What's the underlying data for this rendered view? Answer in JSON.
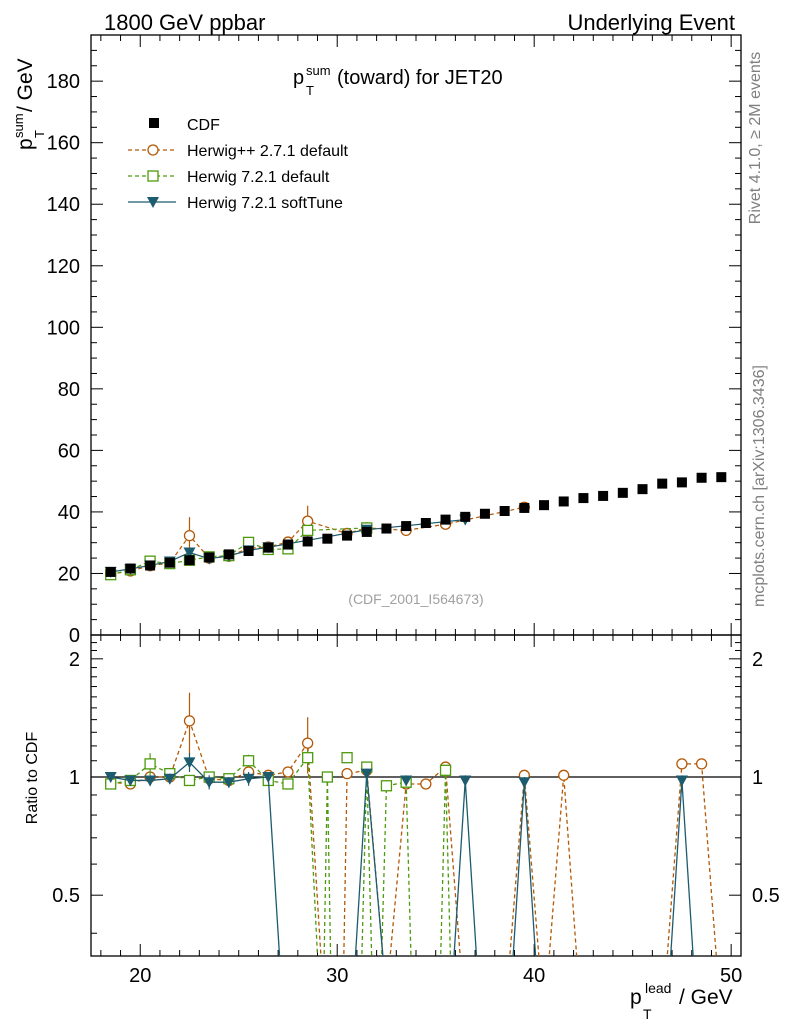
{
  "header": {
    "left": "1800 GeV ppbar",
    "right": "Underlying Event"
  },
  "side": {
    "rivet": "Rivet 4.1.0, ≥ 2M events",
    "mcplots": "mcplots.cern.ch [arXiv:1306.3436]"
  },
  "chart_data": {
    "type": "scatter",
    "title_main": "p",
    "title_sup": "sum",
    "title_sub": "T",
    "title_rest": " (toward) for JET20",
    "ylabel_main": "p",
    "ylabel_sup": "sum",
    "ylabel_sub": "T",
    "ylabel_rest": " / GeV",
    "xlabel_main": "p",
    "xlabel_sup": "lead",
    "xlabel_sub": "T",
    "xlabel_rest": " / GeV",
    "ratio_ylabel": "Ratio to CDF",
    "analysis_id": "(CDF_2001_I564673)",
    "xlim": [
      17.5,
      50.5
    ],
    "ylim": [
      0,
      195
    ],
    "ratio_ylim": [
      0.35,
      2.3
    ],
    "xticks": [
      20,
      30,
      40,
      50
    ],
    "yticks": [
      0,
      20,
      40,
      60,
      80,
      100,
      120,
      140,
      160,
      180
    ],
    "ratio_yticks": [
      0.5,
      1,
      2
    ],
    "legend": [
      {
        "label": "CDF",
        "marker": "square-filled",
        "color": "#000000"
      },
      {
        "label": "Herwig++ 2.7.1 default",
        "marker": "circle-open",
        "color": "#b35806"
      },
      {
        "label": "Herwig 7.2.1 default",
        "marker": "square-open",
        "color": "#4d9a0e"
      },
      {
        "label": "Herwig 7.2.1 softTune",
        "marker": "triangle-down",
        "color": "#1d5b6e"
      }
    ],
    "x": [
      18.5,
      19.5,
      20.5,
      21.5,
      22.5,
      23.5,
      24.5,
      25.5,
      26.5,
      27.5,
      28.5,
      29.5,
      30.5,
      31.5,
      32.5,
      33.5,
      34.5,
      35.5,
      36.5,
      37.5,
      38.5,
      39.5,
      40.5,
      41.5,
      42.5,
      43.5,
      44.5,
      45.5,
      46.5,
      47.5,
      48.5,
      49.5
    ],
    "data": {
      "name": "CDF",
      "values": [
        20.5,
        21.6,
        22.6,
        23.5,
        24.3,
        25.2,
        26.2,
        27.3,
        28.4,
        29.4,
        30.4,
        31.3,
        32.3,
        33.5,
        34.6,
        35.4,
        36.4,
        37.5,
        38.4,
        39.4,
        40.3,
        41.3,
        42.2,
        43.4,
        44.5,
        45.2,
        46.2,
        47.4,
        49.2,
        49.6,
        51.1,
        51.3
      ]
    },
    "series": [
      {
        "name": "Herwig++ 2.7.1 default",
        "values": [
          19.8,
          20.8,
          22.5,
          23.4,
          32.3,
          25.0,
          25.6,
          28.2,
          28.6,
          30.2,
          37.0,
          null,
          33.0,
          34.8,
          null,
          34.0,
          null,
          36.0,
          null,
          null,
          null,
          41.5,
          null,
          null,
          null,
          null,
          null,
          null,
          null,
          null,
          null,
          null
        ],
        "ratio": [
          0.97,
          0.96,
          1.0,
          1.0,
          1.39,
          0.99,
          0.98,
          1.03,
          1.01,
          1.03,
          1.22,
          null,
          1.02,
          1.04,
          null,
          0.96,
          0.96,
          1.06,
          null,
          null,
          null,
          1.01,
          null,
          1.01,
          null,
          null,
          null,
          null,
          null,
          1.08,
          1.08,
          null
        ],
        "errors": [
          0.5,
          0.5,
          0.6,
          0.6,
          6.0,
          0.8,
          0.8,
          0.8,
          0.8,
          1.0,
          5.0,
          null,
          1.0,
          1.0,
          null,
          1.0,
          null,
          1.0,
          null,
          null,
          null,
          1.0,
          null,
          null,
          null,
          null,
          null,
          null,
          null,
          null,
          null,
          null
        ],
        "ratio_errors": [
          0.03,
          0.03,
          0.03,
          0.03,
          0.25,
          0.03,
          0.03,
          0.03,
          0.03,
          0.03,
          0.2,
          null,
          0.03,
          0.03,
          null,
          0.03,
          0.03,
          0.03,
          null,
          null,
          null,
          0.03,
          null,
          0.03,
          null,
          null,
          null,
          null,
          null,
          0.03,
          0.03,
          null
        ],
        "ratio_segments": [
          [
            18.5,
            19.5,
            20.5,
            21.5,
            22.5,
            23.5,
            24.5,
            25.5,
            26.5,
            27.5,
            28.5,
            29.3
          ],
          [
            30.3,
            30.5,
            31.5,
            32.5,
            33.5,
            34.5,
            35.5,
            36.4
          ],
          [
            38.6,
            39.5,
            40.4
          ],
          [
            40.6,
            41.5,
            42.3
          ],
          [
            46.6,
            47.5,
            48.5,
            49.4
          ]
        ]
      },
      {
        "name": "Herwig 7.2.1 default",
        "values": [
          19.6,
          21.2,
          24.0,
          23.2,
          24.3,
          25.4,
          25.8,
          30.1,
          27.8,
          28.0,
          34.0,
          null,
          null,
          34.8,
          null,
          null,
          null,
          null,
          null,
          null,
          null,
          null,
          null,
          null,
          null,
          null,
          null,
          null,
          null,
          null,
          null,
          null
        ],
        "ratio": [
          0.96,
          0.98,
          1.08,
          1.02,
          0.98,
          1.0,
          0.99,
          1.1,
          0.98,
          0.96,
          1.12,
          1.0,
          1.12,
          1.06,
          0.95,
          0.97,
          null,
          1.04,
          null,
          null,
          null,
          null,
          null,
          null,
          null,
          null,
          null,
          null,
          null,
          null,
          null,
          null
        ],
        "errors": [
          0.5,
          0.5,
          0.6,
          0.6,
          0.8,
          0.8,
          0.8,
          0.8,
          0.8,
          0.8,
          1.5,
          null,
          null,
          1.0,
          null,
          null,
          null,
          null,
          null,
          null,
          null,
          null,
          null,
          null,
          null,
          null,
          null,
          null,
          null,
          null,
          null,
          null
        ],
        "ratio_errors": [
          0.03,
          0.03,
          0.07,
          0.03,
          0.03,
          0.03,
          0.03,
          0.04,
          0.03,
          0.03,
          0.05,
          null,
          0.03,
          0.03,
          0.03,
          0.03,
          null,
          0.03,
          null,
          null,
          null,
          null,
          null,
          null,
          null,
          null,
          null,
          null,
          null,
          null,
          null,
          null
        ],
        "ratio_segments": [
          [
            18.5,
            19.5,
            20.5,
            21.5,
            22.5,
            23.5,
            24.5,
            25.5,
            26.5,
            27.5,
            28.5,
            29.1
          ],
          [
            29.3,
            29.5,
            29.7
          ],
          [
            31.2,
            31.5,
            31.8
          ],
          [
            32.2,
            32.5,
            33.5,
            33.8
          ],
          [
            35.2,
            35.5,
            35.8
          ]
        ]
      },
      {
        "name": "Herwig 7.2.1 softTune",
        "values": [
          20.5,
          21.5,
          22.6,
          23.9,
          26.8,
          24.8,
          25.7,
          27.5,
          28.5,
          null,
          null,
          null,
          null,
          34.2,
          null,
          null,
          null,
          null,
          37.5,
          null,
          null,
          null,
          null,
          null,
          null,
          null,
          null,
          null,
          null,
          null,
          null,
          null
        ],
        "errors": [
          0.5,
          0.5,
          0.6,
          0.6,
          1.5,
          0.8,
          0.8,
          0.8,
          0.8,
          null,
          null,
          null,
          null,
          1.0,
          null,
          null,
          null,
          null,
          1.0,
          null,
          null,
          null,
          null,
          null,
          null,
          null,
          null,
          null,
          null,
          null,
          null,
          null
        ],
        "ratio": [
          1.0,
          0.98,
          0.98,
          0.99,
          1.09,
          0.97,
          0.97,
          0.99,
          1.0,
          null,
          null,
          null,
          null,
          1.02,
          null,
          0.98,
          null,
          null,
          0.98,
          null,
          null,
          0.97,
          null,
          null,
          null,
          null,
          null,
          null,
          null,
          0.98,
          null,
          null
        ],
        "ratio_errors": [
          0.03,
          0.03,
          0.03,
          0.03,
          0.06,
          0.04,
          0.03,
          0.04,
          0.03,
          null,
          null,
          null,
          null,
          0.03,
          null,
          0.03,
          null,
          null,
          0.03,
          null,
          null,
          0.03,
          null,
          null,
          null,
          null,
          null,
          null,
          null,
          0.03,
          null,
          null
        ],
        "ratio_segments": [
          [
            18.5,
            19.5,
            20.5,
            21.5,
            22.5,
            23.5,
            24.5,
            25.5,
            26.5,
            27.2
          ],
          [
            30.8,
            31.5,
            32.5,
            33.2
          ],
          [
            35.8,
            36.5,
            37.2
          ],
          [
            38.8,
            39.5,
            40.2
          ],
          [
            46.8,
            47.5,
            48.2
          ]
        ]
      }
    ]
  }
}
